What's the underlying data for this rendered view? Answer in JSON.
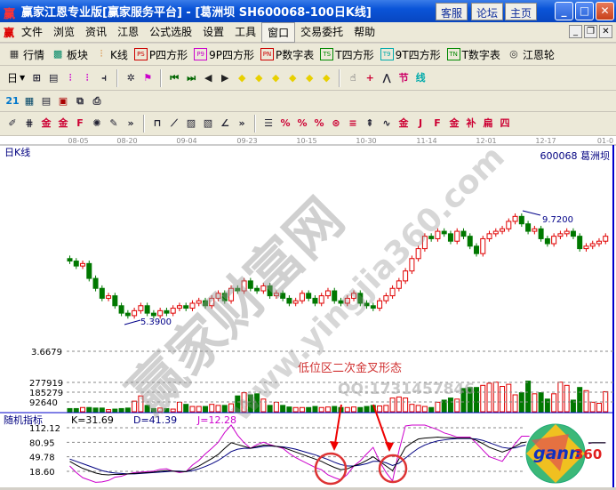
{
  "window": {
    "title": "赢家江恩专业版[赢家服务平台] - [葛洲坝   SH600068-100日K线]",
    "buttons": [
      "客服",
      "论坛",
      "主页"
    ],
    "logo": "赢"
  },
  "menu": {
    "items": [
      "文件",
      "浏览",
      "资讯",
      "江恩",
      "公式选股",
      "设置",
      "工具",
      "窗口",
      "交易委托",
      "帮助"
    ],
    "active": "窗口"
  },
  "toolbar1": [
    {
      "icon": "quotes-icon",
      "glyph": "▦",
      "label": "行情"
    },
    {
      "icon": "sector-icon",
      "glyph": "▩",
      "label": "板块"
    },
    {
      "icon": "kline-icon",
      "glyph": "⫶",
      "label": "K线"
    },
    {
      "icon": "ps-icon",
      "glyph": "PS",
      "label": "P四方形"
    },
    {
      "icon": "p9-icon",
      "glyph": "P9",
      "label": "9P四方形"
    },
    {
      "icon": "pn-icon",
      "glyph": "PN",
      "label": "P数字表"
    },
    {
      "icon": "ts-icon",
      "glyph": "TS",
      "label": "T四方形"
    },
    {
      "icon": "t9-icon",
      "glyph": "T9",
      "label": "9T四方形"
    },
    {
      "icon": "tn-icon",
      "glyph": "TN",
      "label": "T数字表"
    },
    {
      "icon": "gann-wheel-icon",
      "glyph": "◎",
      "label": "江恩轮"
    }
  ],
  "toolbar2": {
    "period": "日",
    "icons": [
      "window-icon",
      "notes-icon",
      "chart3-icon",
      "chart9-icon",
      "candle-type-icon",
      "fan-icon",
      "flag-icon",
      "first-icon",
      "last-icon",
      "left-icon",
      "right-icon",
      "diamond-left-icon",
      "diamond-right-icon",
      "diamond-h-icon",
      "diamond-x-icon",
      "diamond-star-icon",
      "diamond-v-icon",
      "hand-icon",
      "crosshair-icon",
      "draw-icon",
      "section-icon",
      "line-icon"
    ]
  },
  "toolbar3": {
    "icons": [
      "calendar-icon",
      "calculator-icon",
      "report-icon",
      "save-icon",
      "network-icon",
      "print-icon"
    ],
    "calendar_day": "21"
  },
  "toolbar4": {
    "icons": [
      "pen-icon",
      "grid-icon",
      "gold-icon",
      "gold2-icon",
      "f-icon",
      "spiral-icon",
      "eraser-icon",
      "more-icon",
      "box-icon",
      "fan-lines-icon",
      "square-icon",
      "hatched-icon",
      "angle-icon",
      "more2-icon",
      "ladder-icon",
      "percent-line-icon",
      "percent-icon",
      "percent-eq-icon",
      "gold-circle-icon",
      "gold-lines-icon",
      "arrow-bar-icon",
      "wave-icon",
      "gold-eq-icon",
      "j-icon",
      "f-lines-icon",
      "gold-lines2-icon",
      "cross-lines-icon",
      "ratio-icon",
      "four-lines-icon"
    ]
  },
  "chart": {
    "period_label": "日K线",
    "stock": "600068  葛洲坝",
    "dates": [
      "08-05",
      "08-20",
      "09-04",
      "09-23",
      "10-15",
      "10-30",
      "11-14",
      "12-01",
      "12-17",
      "01-0"
    ],
    "price_axis_label": "3.6679",
    "low_label": "5.3900",
    "high_label": "9.7200",
    "volume_axis": [
      "277919",
      "185279",
      "92640"
    ],
    "indicator": {
      "name": "随机指标",
      "k": "K=31.69",
      "d": "D=41.39",
      "j": "J=12.28",
      "axis": [
        "112.12",
        "80.95",
        "49.78",
        "18.60"
      ]
    },
    "annotation": "低位区二次金叉形态",
    "watermark_qq": "QQ:1731457846",
    "watermark_site": "赢家财富网",
    "watermark_url": "www.yingjia360.com",
    "logo_text": "gann360",
    "colors": {
      "up": "#e00000",
      "down": "#007800",
      "k": "#000000",
      "d": "#000080",
      "j": "#cc00cc",
      "axis_text": "#000080",
      "annotation": "#d03030"
    }
  },
  "chart_data": {
    "type": "candlestick",
    "ylim": [
      3.6679,
      9.72
    ],
    "close": [
      7.7,
      7.5,
      7.6,
      7.0,
      6.6,
      6.2,
      6.3,
      5.9,
      5.6,
      5.5,
      5.7,
      5.9,
      5.6,
      5.5,
      5.7,
      5.6,
      5.8,
      5.9,
      5.8,
      6.0,
      6.1,
      5.9,
      6.2,
      6.4,
      6.1,
      6.6,
      6.5,
      6.9,
      6.6,
      6.5,
      6.7,
      6.3,
      6.4,
      6.2,
      6.0,
      6.1,
      6.4,
      6.2,
      6.0,
      6.3,
      6.5,
      6.1,
      6.0,
      6.2,
      6.4,
      6.0,
      5.9,
      5.8,
      6.1,
      6.3,
      6.6,
      6.9,
      7.3,
      7.8,
      8.2,
      8.7,
      8.6,
      8.9,
      8.8,
      8.5,
      8.9,
      8.7,
      8.3,
      8.0,
      8.6,
      8.8,
      8.9,
      9.0,
      9.3,
      9.5,
      9.2,
      8.9,
      9.0,
      8.6,
      8.4,
      8.7,
      8.8,
      8.9,
      8.7,
      8.2,
      8.3,
      8.4,
      8.5,
      8.7
    ],
    "volume": [
      30000,
      30000,
      40000,
      40000,
      35000,
      35000,
      20000,
      25000,
      30000,
      35000,
      100000,
      150000,
      60000,
      30000,
      35000,
      30000,
      25000,
      90000,
      70000,
      50000,
      50000,
      50000,
      70000,
      60000,
      60000,
      75000,
      150000,
      180000,
      160000,
      170000,
      120000,
      60000,
      90000,
      60000,
      45000,
      40000,
      40000,
      40000,
      50000,
      40000,
      45000,
      50000,
      40000,
      40000,
      45000,
      40000,
      50000,
      60000,
      55000,
      60000,
      130000,
      140000,
      130000,
      70000,
      60000,
      50000,
      40000,
      90000,
      110000,
      130000,
      120000,
      220000,
      230000,
      230000,
      250000,
      270000,
      280000,
      240000,
      260000,
      160000,
      180000,
      290000,
      170000,
      180000,
      120000,
      170000,
      280000,
      250000,
      110000,
      230000,
      200000,
      90000,
      80000,
      190000
    ],
    "K": [
      40,
      32,
      25,
      20,
      15,
      12,
      11,
      12,
      12,
      13,
      14,
      15,
      16,
      17,
      19,
      20,
      19,
      18,
      18,
      24,
      30,
      38,
      46,
      55,
      68,
      80,
      76,
      72,
      68,
      72,
      75,
      74,
      72,
      70,
      65,
      60,
      55,
      50,
      45,
      40,
      33,
      27,
      22,
      24,
      30,
      35,
      42,
      50,
      40,
      30,
      20,
      45,
      70,
      80,
      88,
      90,
      91,
      92,
      91,
      91,
      90,
      90,
      90,
      85,
      78,
      70,
      65,
      60,
      65,
      72,
      80,
      82,
      84,
      85,
      84,
      83,
      82,
      81,
      80,
      80,
      79,
      80,
      80,
      80
    ],
    "D": [
      45,
      40,
      35,
      30,
      25,
      20,
      17,
      15,
      14,
      13,
      13,
      14,
      15,
      16,
      17,
      18,
      19,
      19,
      18,
      20,
      24,
      29,
      35,
      42,
      51,
      61,
      66,
      68,
      68,
      70,
      72,
      73,
      72,
      71,
      69,
      66,
      62,
      58,
      54,
      49,
      44,
      38,
      33,
      30,
      30,
      32,
      35,
      40,
      40,
      37,
      31,
      36,
      47,
      58,
      68,
      75,
      80,
      84,
      86,
      88,
      89,
      89,
      89,
      88,
      85,
      80,
      75,
      70,
      68,
      69,
      73,
      76,
      79,
      81,
      82,
      82,
      82,
      82,
      81,
      81,
      80,
      80,
      80,
      80
    ],
    "kdj_axis": [
      112.12,
      80.95,
      49.78,
      18.6
    ],
    "volume_axis": [
      92640,
      185279,
      277919
    ]
  }
}
